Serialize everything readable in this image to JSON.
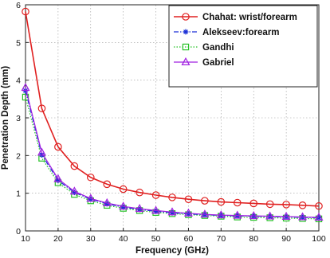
{
  "chart_data": {
    "type": "line",
    "title": "",
    "xlabel": "Frequency (GHz)",
    "ylabel": "Penetration Depth (mm)",
    "xlim": [
      10,
      100
    ],
    "ylim": [
      0,
      6
    ],
    "xticks": [
      10,
      20,
      30,
      40,
      50,
      60,
      70,
      80,
      90,
      100
    ],
    "yticks": [
      0,
      1,
      2,
      3,
      4,
      5,
      6
    ],
    "grid": true,
    "legend_position": "top-right",
    "x": [
      10,
      15,
      20,
      25,
      30,
      35,
      40,
      45,
      50,
      55,
      60,
      65,
      70,
      75,
      80,
      85,
      90,
      95,
      100
    ],
    "series": [
      {
        "name": "Chahat: wrist/forearm",
        "color": "#e02020",
        "marker": "circle",
        "line": "solid",
        "values": [
          5.82,
          3.25,
          2.23,
          1.72,
          1.42,
          1.24,
          1.11,
          1.02,
          0.95,
          0.89,
          0.84,
          0.8,
          0.77,
          0.75,
          0.73,
          0.71,
          0.7,
          0.68,
          0.66
        ]
      },
      {
        "name": "Alekseev:forearm",
        "color": "#1a2fd6",
        "marker": "star",
        "line": "dashdot",
        "values": [
          3.72,
          2.02,
          1.34,
          1.02,
          0.84,
          0.72,
          0.63,
          0.57,
          0.52,
          0.48,
          0.45,
          0.43,
          0.41,
          0.4,
          0.39,
          0.38,
          0.37,
          0.36,
          0.35
        ]
      },
      {
        "name": "Gandhi",
        "color": "#27c227",
        "marker": "square",
        "line": "dotted",
        "values": [
          3.55,
          1.93,
          1.28,
          0.97,
          0.8,
          0.68,
          0.6,
          0.54,
          0.49,
          0.46,
          0.43,
          0.41,
          0.39,
          0.37,
          0.36,
          0.35,
          0.34,
          0.33,
          0.32
        ]
      },
      {
        "name": "Gabriel",
        "color": "#a020e0",
        "marker": "triangle",
        "line": "solid",
        "values": [
          3.8,
          2.08,
          1.38,
          1.05,
          0.86,
          0.74,
          0.65,
          0.59,
          0.54,
          0.5,
          0.47,
          0.44,
          0.42,
          0.41,
          0.4,
          0.39,
          0.38,
          0.37,
          0.36
        ]
      }
    ]
  }
}
